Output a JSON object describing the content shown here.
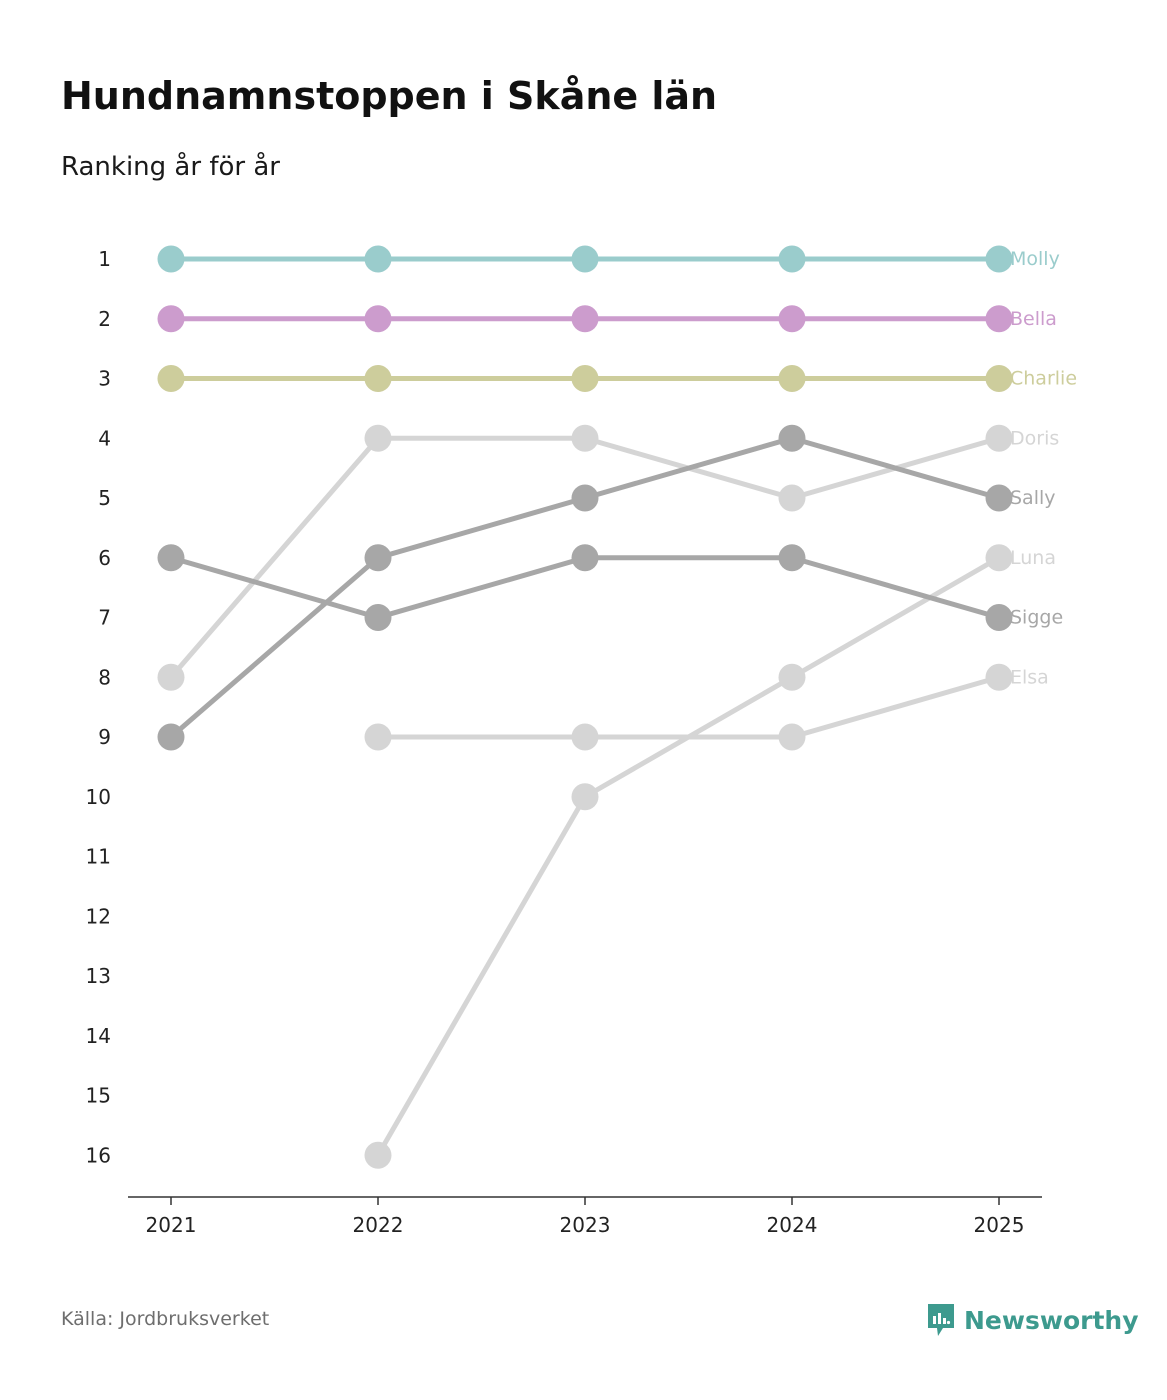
{
  "title": "Hundnamnstoppen i Skåne län",
  "subtitle": "Ranking år för år",
  "source": "Källa: Jordbruksverket",
  "brand": "Newsworthy",
  "colors": {
    "brand": "#3d9a8e",
    "axis": "#333333"
  },
  "chart_data": {
    "type": "line",
    "title": "Hundnamnstoppen i Skåne län",
    "subtitle": "Ranking år för år",
    "xlabel": "",
    "ylabel": "",
    "x": [
      "2021",
      "2022",
      "2023",
      "2024",
      "2025"
    ],
    "y_ticks": [
      "1",
      "2",
      "3",
      "4",
      "5",
      "6",
      "7",
      "8",
      "9",
      "10",
      "11",
      "12",
      "13",
      "14",
      "15",
      "16"
    ],
    "ylim": [
      1,
      16
    ],
    "y_inverted": true,
    "series": [
      {
        "name": "Doris",
        "color": "#d5d5d5",
        "values": [
          8,
          4,
          4,
          5,
          4
        ]
      },
      {
        "name": "Luna",
        "color": "#d5d5d5",
        "values": [
          null,
          16,
          10,
          8,
          6
        ]
      },
      {
        "name": "Elsa",
        "color": "#d5d5d5",
        "values": [
          null,
          9,
          9,
          9,
          8
        ]
      },
      {
        "name": "Sally",
        "color": "#a7a7a7",
        "values": [
          9,
          6,
          5,
          4,
          5
        ]
      },
      {
        "name": "Sigge",
        "color": "#a7a7a7",
        "values": [
          6,
          7,
          6,
          6,
          7
        ]
      },
      {
        "name": "Charlie",
        "color": "#cdcd9c",
        "values": [
          3,
          3,
          3,
          3,
          3
        ]
      },
      {
        "name": "Bella",
        "color": "#cc9ccd",
        "values": [
          2,
          2,
          2,
          2,
          2
        ]
      },
      {
        "name": "Molly",
        "color": "#9acccc",
        "values": [
          1,
          1,
          1,
          1,
          1
        ]
      }
    ]
  }
}
